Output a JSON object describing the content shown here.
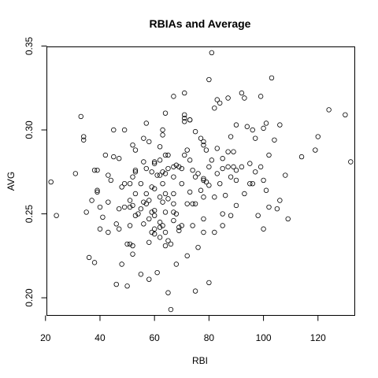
{
  "chart_data": {
    "type": "scatter",
    "title": "RBIAs and Average",
    "xlabel": "RBI",
    "ylabel": "AVG",
    "xlim": [
      20.5,
      133.5
    ],
    "ylim": [
      0.1895,
      0.3495
    ],
    "xticks": [
      20,
      40,
      60,
      80,
      100,
      120
    ],
    "yticks": [
      0.2,
      0.25,
      0.3,
      0.35
    ],
    "xtick_labels": [
      "20",
      "40",
      "60",
      "80",
      "100",
      "120"
    ],
    "ytick_labels": [
      "0.20",
      "0.25",
      "0.30",
      "0.35"
    ],
    "grid": false,
    "marker": "open-circle",
    "series": [
      {
        "points": [
          [
            22,
            0.269
          ],
          [
            24,
            0.249
          ],
          [
            31,
            0.274
          ],
          [
            33,
            0.308
          ],
          [
            34,
            0.296
          ],
          [
            34,
            0.294
          ],
          [
            35,
            0.251
          ],
          [
            36,
            0.224
          ],
          [
            37,
            0.258
          ],
          [
            38,
            0.221
          ],
          [
            38,
            0.276
          ],
          [
            39,
            0.276
          ],
          [
            39,
            0.264
          ],
          [
            39,
            0.263
          ],
          [
            40,
            0.254
          ],
          [
            40,
            0.241
          ],
          [
            41,
            0.248
          ],
          [
            42,
            0.285
          ],
          [
            43,
            0.273
          ],
          [
            43,
            0.257
          ],
          [
            43,
            0.239
          ],
          [
            44,
            0.27
          ],
          [
            45,
            0.3
          ],
          [
            45,
            0.284
          ],
          [
            46,
            0.208
          ],
          [
            46,
            0.244
          ],
          [
            47,
            0.283
          ],
          [
            47,
            0.253
          ],
          [
            47,
            0.241
          ],
          [
            48,
            0.266
          ],
          [
            48,
            0.22
          ],
          [
            49,
            0.3
          ],
          [
            49,
            0.268
          ],
          [
            49,
            0.254
          ],
          [
            50,
            0.232
          ],
          [
            50,
            0.207
          ],
          [
            51,
            0.268
          ],
          [
            51,
            0.258
          ],
          [
            51,
            0.254
          ],
          [
            51,
            0.243
          ],
          [
            51,
            0.232
          ],
          [
            52,
            0.291
          ],
          [
            52,
            0.272
          ],
          [
            52,
            0.255
          ],
          [
            52,
            0.231
          ],
          [
            52,
            0.226
          ],
          [
            53,
            0.288
          ],
          [
            53,
            0.276
          ],
          [
            53,
            0.275
          ],
          [
            53,
            0.262
          ],
          [
            53,
            0.249
          ],
          [
            54,
            0.25
          ],
          [
            55,
            0.268
          ],
          [
            55,
            0.253
          ],
          [
            55,
            0.214
          ],
          [
            56,
            0.295
          ],
          [
            56,
            0.281
          ],
          [
            56,
            0.257
          ],
          [
            56,
            0.244
          ],
          [
            57,
            0.304
          ],
          [
            57,
            0.277
          ],
          [
            57,
            0.262
          ],
          [
            57,
            0.256
          ],
          [
            58,
            0.293
          ],
          [
            58,
            0.258
          ],
          [
            58,
            0.247
          ],
          [
            58,
            0.233
          ],
          [
            58,
            0.211
          ],
          [
            59,
            0.275
          ],
          [
            59,
            0.266
          ],
          [
            59,
            0.251
          ],
          [
            59,
            0.239
          ],
          [
            60,
            0.281
          ],
          [
            60,
            0.28
          ],
          [
            60,
            0.265
          ],
          [
            60,
            0.252
          ],
          [
            60,
            0.249
          ],
          [
            60,
            0.241
          ],
          [
            60,
            0.238
          ],
          [
            61,
            0.273
          ],
          [
            61,
            0.215
          ],
          [
            62,
            0.29
          ],
          [
            62,
            0.282
          ],
          [
            62,
            0.273
          ],
          [
            62,
            0.26
          ],
          [
            62,
            0.245
          ],
          [
            62,
            0.242
          ],
          [
            62,
            0.236
          ],
          [
            63,
            0.3
          ],
          [
            63,
            0.297
          ],
          [
            63,
            0.275
          ],
          [
            63,
            0.268
          ],
          [
            63,
            0.257
          ],
          [
            63,
            0.243
          ],
          [
            64,
            0.31
          ],
          [
            64,
            0.285
          ],
          [
            64,
            0.274
          ],
          [
            64,
            0.262
          ],
          [
            64,
            0.251
          ],
          [
            64,
            0.239
          ],
          [
            64,
            0.231
          ],
          [
            65,
            0.285
          ],
          [
            65,
            0.277
          ],
          [
            65,
            0.259
          ],
          [
            65,
            0.234
          ],
          [
            65,
            0.203
          ],
          [
            66,
            0.232
          ],
          [
            66,
            0.193
          ],
          [
            67,
            0.32
          ],
          [
            67,
            0.278
          ],
          [
            67,
            0.272
          ],
          [
            67,
            0.262
          ],
          [
            67,
            0.256
          ],
          [
            67,
            0.251
          ],
          [
            67,
            0.246
          ],
          [
            68,
            0.279
          ],
          [
            68,
            0.25
          ],
          [
            68,
            0.22
          ],
          [
            69,
            0.278
          ],
          [
            69,
            0.242
          ],
          [
            69,
            0.24
          ],
          [
            70,
            0.277
          ],
          [
            70,
            0.268
          ],
          [
            70,
            0.243
          ],
          [
            71,
            0.322
          ],
          [
            71,
            0.309
          ],
          [
            71,
            0.307
          ],
          [
            71,
            0.305
          ],
          [
            71,
            0.285
          ],
          [
            72,
            0.288
          ],
          [
            72,
            0.256
          ],
          [
            72,
            0.225
          ],
          [
            73,
            0.306
          ],
          [
            73,
            0.306
          ],
          [
            73,
            0.282
          ],
          [
            73,
            0.263
          ],
          [
            74,
            0.276
          ],
          [
            74,
            0.256
          ],
          [
            74,
            0.243
          ],
          [
            75,
            0.299
          ],
          [
            75,
            0.272
          ],
          [
            75,
            0.256
          ],
          [
            75,
            0.204
          ],
          [
            76,
            0.23
          ],
          [
            76,
            0.274
          ],
          [
            77,
            0.295
          ],
          [
            77,
            0.264
          ],
          [
            78,
            0.293
          ],
          [
            78,
            0.291
          ],
          [
            78,
            0.271
          ],
          [
            78,
            0.27
          ],
          [
            78,
            0.26
          ],
          [
            78,
            0.247
          ],
          [
            78,
            0.239
          ],
          [
            79,
            0.288
          ],
          [
            79,
            0.269
          ],
          [
            80,
            0.33
          ],
          [
            80,
            0.278
          ],
          [
            80,
            0.267
          ],
          [
            80,
            0.209
          ],
          [
            81,
            0.346
          ],
          [
            81,
            0.282
          ],
          [
            82,
            0.313
          ],
          [
            82,
            0.26
          ],
          [
            82,
            0.239
          ],
          [
            83,
            0.318
          ],
          [
            83,
            0.289
          ],
          [
            83,
            0.274
          ],
          [
            84,
            0.316
          ],
          [
            84,
            0.268
          ],
          [
            85,
            0.283
          ],
          [
            85,
            0.277
          ],
          [
            85,
            0.25
          ],
          [
            85,
            0.243
          ],
          [
            86,
            0.261
          ],
          [
            87,
            0.319
          ],
          [
            87,
            0.287
          ],
          [
            87,
            0.278
          ],
          [
            88,
            0.296
          ],
          [
            88,
            0.272
          ],
          [
            88,
            0.249
          ],
          [
            89,
            0.287
          ],
          [
            89,
            0.278
          ],
          [
            90,
            0.303
          ],
          [
            90,
            0.276
          ],
          [
            90,
            0.27
          ],
          [
            90,
            0.255
          ],
          [
            92,
            0.322
          ],
          [
            92,
            0.278
          ],
          [
            93,
            0.319
          ],
          [
            93,
            0.262
          ],
          [
            94,
            0.302
          ],
          [
            95,
            0.28
          ],
          [
            95,
            0.268
          ],
          [
            96,
            0.3
          ],
          [
            96,
            0.268
          ],
          [
            97,
            0.295
          ],
          [
            97,
            0.275
          ],
          [
            98,
            0.249
          ],
          [
            99,
            0.32
          ],
          [
            99,
            0.278
          ],
          [
            100,
            0.301
          ],
          [
            100,
            0.27
          ],
          [
            100,
            0.241
          ],
          [
            101,
            0.304
          ],
          [
            101,
            0.264
          ],
          [
            102,
            0.285
          ],
          [
            102,
            0.254
          ],
          [
            103,
            0.331
          ],
          [
            104,
            0.294
          ],
          [
            105,
            0.253
          ],
          [
            106,
            0.303
          ],
          [
            106,
            0.258
          ],
          [
            108,
            0.273
          ],
          [
            109,
            0.247
          ],
          [
            114,
            0.284
          ],
          [
            119,
            0.288
          ],
          [
            120,
            0.296
          ],
          [
            124,
            0.312
          ],
          [
            130,
            0.309
          ],
          [
            132,
            0.281
          ]
        ]
      }
    ]
  }
}
